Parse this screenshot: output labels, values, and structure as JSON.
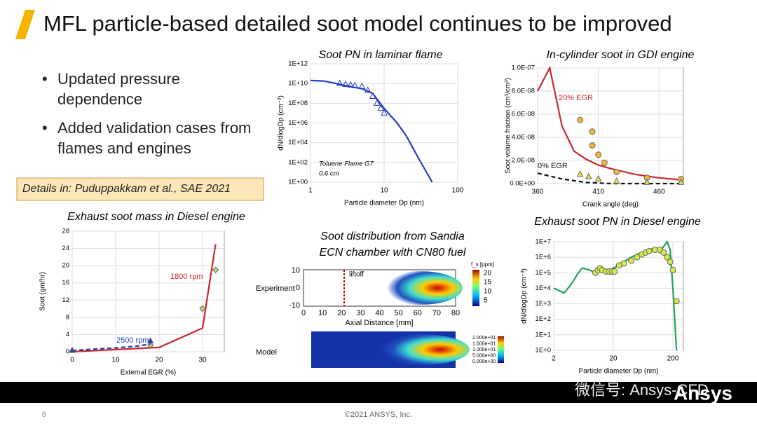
{
  "header": {
    "title": "MFL particle-based detailed soot model continues to be improved"
  },
  "bullets": [
    "Updated pressure dependence",
    "Added validation cases from flames and engines"
  ],
  "reference": "Details in: Puduppakkam et al., SAE 2021",
  "sandia": {
    "title": [
      "Soot distribution from Sandia",
      "ECN chamber with CN80 fuel"
    ],
    "experiment": "Experiment",
    "model": "Model",
    "liftoff": "liftoff",
    "xlabel": "Axial Distance [mm]",
    "xticks": [
      "0",
      "10",
      "20",
      "30",
      "40",
      "50",
      "60",
      "70",
      "80"
    ],
    "yticks": [
      "10",
      "0",
      "-10"
    ],
    "cbar_title": "f_v [ppm]",
    "cbar_ticks": [
      "20",
      "15",
      "10",
      "5"
    ],
    "model_cbar_ticks": [
      "2.000e+01",
      "1.500e+01",
      "1.000e+01",
      "5.000e+00",
      "0.000e+00"
    ]
  },
  "footer": {
    "page": "6",
    "copyright": "©2021 ANSYS, Inc.",
    "watermark": "微信号: Ansys-CFD",
    "logo": "Ansys"
  },
  "chart_data": [
    {
      "type": "line",
      "title": "Soot PN in laminar flame",
      "xlabel": "Particle diameter Dp (nm)",
      "ylabel": "dN/dlogDp (cm⁻³)",
      "annotations": [
        "Toluene Flame G7",
        "0.6 cm"
      ],
      "xlog": true,
      "ylog": true,
      "xlim": [
        1,
        100
      ],
      "xticks": [
        1,
        10,
        100
      ],
      "ylim": [
        1,
        1000000000000.0
      ],
      "yticks": [
        {
          "value": 1,
          "label": "1E+00"
        },
        {
          "value": 100,
          "label": "1E+02"
        },
        {
          "value": 10000,
          "label": "1E+04"
        },
        {
          "value": 1000000,
          "label": "1E+06"
        },
        {
          "value": 100000000,
          "label": "1E+08"
        },
        {
          "value": 10000000000,
          "label": "1E+10"
        },
        {
          "value": 1000000000000,
          "label": "1E+12"
        }
      ],
      "series": [
        {
          "mode": "line",
          "color": "#1f3fbf",
          "x": [
            1,
            1.5,
            2,
            3,
            4,
            5,
            7,
            10,
            15,
            20,
            30,
            45
          ],
          "values": [
            20000000000,
            18000000000,
            12000000000,
            6000000000,
            4000000000,
            3000000000,
            1000000000,
            30000000,
            1000000,
            50000,
            200,
            1
          ]
        },
        {
          "mode": "markers",
          "marker": "triangle",
          "filled": false,
          "color": "#1f3fbf",
          "x": [
            2.5,
            3,
            3.5,
            4,
            5,
            6,
            7,
            8,
            9,
            10
          ],
          "values": [
            10000000000,
            8000000000,
            7000000000,
            6000000000,
            5000000000,
            2000000000,
            500000000,
            100000000,
            30000000,
            10000000
          ]
        }
      ]
    },
    {
      "type": "line",
      "title": "In-cylinder soot in GDI engine",
      "xlabel": "Crank angle (deg)",
      "ylabel": "Soot volume fraction (cm³/cm³)",
      "annotations": [],
      "xlim": [
        360,
        480
      ],
      "xticks": [
        360,
        410,
        460
      ],
      "ylim": [
        0,
        1e-07
      ],
      "yticks": [
        {
          "value": 0,
          "label": "0.0E+00"
        },
        {
          "value": 2e-08,
          "label": "2.0E-08"
        },
        {
          "value": 4e-08,
          "label": "4.0E-08"
        },
        {
          "value": 6e-08,
          "label": "6.0E-08"
        },
        {
          "value": 8e-08,
          "label": "8.0E-08"
        },
        {
          "value": 1e-07,
          "label": "1.0E-07"
        }
      ],
      "series": [
        {
          "name": "20% EGR",
          "mode": "line",
          "color": "#c8282d",
          "x": [
            360,
            370,
            380,
            390,
            400,
            410,
            420,
            440,
            460,
            480
          ],
          "values": [
            8e-08,
            1e-07,
            5e-08,
            2.8e-08,
            2.1e-08,
            1.6e-08,
            1.3e-08,
            8e-09,
            5e-09,
            3e-09
          ]
        },
        {
          "mode": "markers",
          "marker": "circle",
          "filled": true,
          "color": "#f5b335",
          "x": [
            395,
            405,
            405,
            410,
            415,
            425,
            450,
            478
          ],
          "values": [
            5.5e-08,
            4.5e-08,
            3.3e-08,
            2.5e-08,
            1.8e-08,
            1e-08,
            5e-09,
            4e-09
          ]
        },
        {
          "name": "0% EGR",
          "mode": "line",
          "dash": true,
          "color": "#111111",
          "x": [
            360,
            380,
            400,
            420,
            440,
            480
          ],
          "values": [
            9e-09,
            4e-09,
            1e-09,
            0,
            0,
            0
          ]
        },
        {
          "mode": "markers",
          "marker": "triangle",
          "filled": true,
          "color": "#e8e04a",
          "x": [
            395,
            402,
            410,
            425,
            450,
            478
          ],
          "values": [
            8e-09,
            6e-09,
            4e-09,
            2e-09,
            1e-09,
            1e-09
          ]
        }
      ]
    },
    {
      "type": "line",
      "title": "Exhaust soot mass in Diesel engine",
      "xlabel": "External EGR (%)",
      "ylabel": "Soot (gm/hr)",
      "annotations": [],
      "xlim": [
        0,
        35
      ],
      "xticks": [
        0,
        10,
        20,
        30
      ],
      "ylim": [
        0,
        28
      ],
      "yticks": [
        0,
        4,
        8,
        12,
        16,
        20,
        24,
        28
      ],
      "series": [
        {
          "name": "1800 rpm",
          "mode": "line",
          "color": "#c8282d",
          "x": [
            0,
            10,
            20,
            30,
            33
          ],
          "values": [
            0,
            0.5,
            1,
            5.5,
            25
          ]
        },
        {
          "mode": "markers",
          "marker": "diamond",
          "filled": true,
          "color": "#b5d86a",
          "x": [
            18,
            30,
            33
          ],
          "values": [
            1.5,
            10,
            19
          ]
        },
        {
          "name": "2500 rpm",
          "mode": "line",
          "dash": true,
          "color": "#1f3fbf",
          "x": [
            0,
            5,
            10,
            15,
            18
          ],
          "values": [
            0.3,
            0.6,
            0.9,
            1.3,
            1.8
          ]
        },
        {
          "mode": "markers",
          "marker": "triangle",
          "filled": true,
          "color": "#1f3fbf",
          "x": [
            0,
            18
          ],
          "values": [
            0.3,
            2.5
          ]
        }
      ]
    },
    {
      "type": "line",
      "title": "Exhaust soot PN in Diesel engine",
      "xlabel": "Particle diameter Dp (nm)",
      "ylabel": "dN/dlogDp (cm⁻³)",
      "annotations": [],
      "xlog": true,
      "ylog": true,
      "xlim": [
        2,
        300
      ],
      "xticks": [
        2,
        20,
        200
      ],
      "ylim": [
        1,
        10000000
      ],
      "yticks": [
        {
          "value": 1,
          "label": "1E+0"
        },
        {
          "value": 10,
          "label": "1E+1"
        },
        {
          "value": 100,
          "label": "1E+2"
        },
        {
          "value": 1000,
          "label": "1E+3"
        },
        {
          "value": 10000,
          "label": "1E+4"
        },
        {
          "value": 100000,
          "label": "1E+5"
        },
        {
          "value": 1000000,
          "label": "1E+6"
        },
        {
          "value": 10000000,
          "label": "1E+7"
        }
      ],
      "series": [
        {
          "mode": "line",
          "color": "#1ea35a",
          "x": [
            2,
            3,
            4,
            5,
            6,
            8,
            10,
            12,
            15,
            20,
            25,
            30,
            40,
            50,
            60,
            80,
            100,
            120,
            140,
            160,
            180,
            200,
            230
          ],
          "values": [
            10000,
            5000,
            20000,
            80000,
            200000,
            150000,
            100000,
            150000,
            100000,
            200000,
            300000,
            500000,
            1000000,
            1500000,
            2000000,
            3000000,
            4000000,
            2000000,
            5000000,
            10000000,
            3000000,
            10000,
            1
          ]
        },
        {
          "mode": "markers",
          "marker": "circle",
          "filled": true,
          "color": "#d6ea4a",
          "x": [
            10,
            11,
            12,
            13,
            15,
            17,
            19,
            21,
            25,
            30,
            40,
            50,
            60,
            70,
            80,
            100,
            120,
            140,
            160,
            180,
            200,
            230
          ],
          "values": [
            100000,
            150000,
            200000,
            150000,
            120000,
            120000,
            120000,
            120000,
            300000,
            400000,
            600000,
            1000000,
            1500000,
            2000000,
            2500000,
            3000000,
            3000000,
            2000000,
            1000000,
            500000,
            150000,
            1500
          ]
        }
      ]
    }
  ]
}
